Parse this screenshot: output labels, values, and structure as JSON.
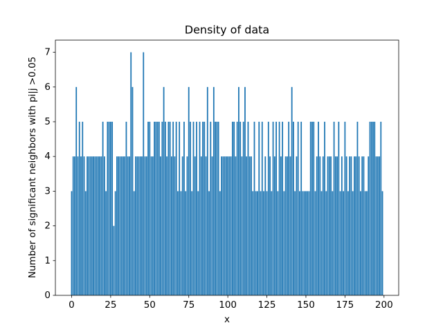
{
  "chart_data": {
    "type": "bar",
    "title": "Density of data",
    "xlabel": "x",
    "ylabel": "Number of significant neighbors with pi|j >0.05",
    "color": "#1f77b4",
    "x": [
      0,
      1,
      2,
      3,
      4,
      5,
      6,
      7,
      8,
      9,
      10,
      11,
      12,
      13,
      14,
      15,
      16,
      17,
      18,
      19,
      20,
      21,
      22,
      23,
      24,
      25,
      26,
      27,
      28,
      29,
      30,
      31,
      32,
      33,
      34,
      35,
      36,
      37,
      38,
      39,
      40,
      41,
      42,
      43,
      44,
      45,
      46,
      47,
      48,
      49,
      50,
      51,
      52,
      53,
      54,
      55,
      56,
      57,
      58,
      59,
      60,
      61,
      62,
      63,
      64,
      65,
      66,
      67,
      68,
      69,
      70,
      71,
      72,
      73,
      74,
      75,
      76,
      77,
      78,
      79,
      80,
      81,
      82,
      83,
      84,
      85,
      86,
      87,
      88,
      89,
      90,
      91,
      92,
      93,
      94,
      95,
      96,
      97,
      98,
      99,
      100,
      101,
      102,
      103,
      104,
      105,
      106,
      107,
      108,
      109,
      110,
      111,
      112,
      113,
      114,
      115,
      116,
      117,
      118,
      119,
      120,
      121,
      122,
      123,
      124,
      125,
      126,
      127,
      128,
      129,
      130,
      131,
      132,
      133,
      134,
      135,
      136,
      137,
      138,
      139,
      140,
      141,
      142,
      143,
      144,
      145,
      146,
      147,
      148,
      149,
      150,
      151,
      152,
      153,
      154,
      155,
      156,
      157,
      158,
      159,
      160,
      161,
      162,
      163,
      164,
      165,
      166,
      167,
      168,
      169,
      170,
      171,
      172,
      173,
      174,
      175,
      176,
      177,
      178,
      179,
      180,
      181,
      182,
      183,
      184,
      185,
      186,
      187,
      188,
      189,
      190,
      191,
      192,
      193,
      194,
      195,
      196,
      197,
      198,
      199
    ],
    "values": [
      3,
      4,
      4,
      6,
      4,
      5,
      4,
      5,
      4,
      3,
      4,
      4,
      4,
      4,
      4,
      4,
      4,
      4,
      4,
      4,
      5,
      4,
      3,
      5,
      5,
      5,
      5,
      2,
      3,
      4,
      4,
      4,
      4,
      4,
      4,
      5,
      4,
      4,
      7,
      6,
      3,
      4,
      4,
      4,
      4,
      4,
      7,
      4,
      4,
      5,
      5,
      4,
      4,
      5,
      5,
      5,
      5,
      4,
      5,
      6,
      5,
      4,
      5,
      5,
      4,
      5,
      4,
      5,
      3,
      5,
      3,
      4,
      5,
      3,
      4,
      6,
      5,
      3,
      5,
      4,
      5,
      3,
      5,
      4,
      5,
      5,
      4,
      6,
      3,
      5,
      4,
      6,
      5,
      5,
      5,
      3,
      4,
      4,
      4,
      4,
      4,
      4,
      4,
      5,
      5,
      4,
      5,
      6,
      5,
      4,
      5,
      6,
      4,
      5,
      4,
      4,
      3,
      5,
      3,
      3,
      5,
      3,
      5,
      3,
      4,
      3,
      5,
      4,
      3,
      5,
      4,
      5,
      3,
      5,
      4,
      5,
      3,
      4,
      4,
      5,
      4,
      6,
      5,
      3,
      4,
      5,
      3,
      5,
      3,
      3,
      3,
      3,
      3,
      5,
      5,
      5,
      3,
      4,
      5,
      4,
      3,
      4,
      5,
      3,
      4,
      4,
      4,
      3,
      5,
      4,
      4,
      5,
      3,
      4,
      3,
      5,
      4,
      3,
      4,
      4,
      3,
      4,
      4,
      5,
      4,
      3,
      4,
      4,
      3,
      3,
      4,
      5,
      5,
      5,
      5,
      4,
      4,
      4,
      5,
      3
    ],
    "xlim": [
      -10.4,
      209.4
    ],
    "xticks": [
      0,
      25,
      50,
      75,
      100,
      125,
      150,
      175,
      200
    ],
    "ylim": [
      0,
      7.35
    ],
    "yticks": [
      0,
      1,
      2,
      3,
      4,
      5,
      6,
      7
    ]
  }
}
